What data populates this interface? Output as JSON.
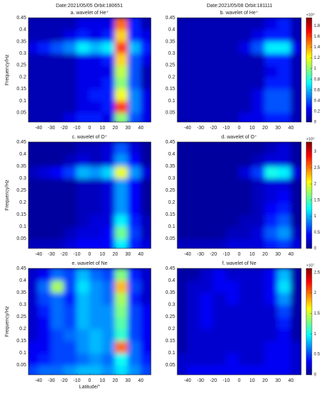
{
  "header": {
    "left": "Date:2021/05/05  Orbit:180651",
    "right": "Date:2021/05/08  Orbit:181111"
  },
  "chart_data": [
    {
      "type": "heatmap",
      "title": "a.  wavelet of He⁺",
      "ylabel": "Frequency/Hz",
      "colormap": "jet",
      "x": [
        -45,
        -35,
        -25,
        -15,
        -5,
        5,
        15,
        25,
        35,
        45
      ],
      "y": [
        0.025,
        0.075,
        0.125,
        0.175,
        0.225,
        0.275,
        0.325,
        0.375,
        0.425
      ],
      "z": [
        [
          0.1,
          0.1,
          0.1,
          0.2,
          0.3,
          0.3,
          0.2,
          1.0,
          0.4,
          0.2
        ],
        [
          0.1,
          0.1,
          0.1,
          0.1,
          0.2,
          0.2,
          0.3,
          1.6,
          0.5,
          0.2
        ],
        [
          0.1,
          0.1,
          0.1,
          0.1,
          0.2,
          0.3,
          0.3,
          1.2,
          0.5,
          0.2
        ],
        [
          0.1,
          0.1,
          0.1,
          0.1,
          0.2,
          0.2,
          0.3,
          1.0,
          0.4,
          0.1
        ],
        [
          0.1,
          0.1,
          0.1,
          0.1,
          0.2,
          0.2,
          0.2,
          1.1,
          0.4,
          0.1
        ],
        [
          0.1,
          0.1,
          0.1,
          0.1,
          0.2,
          0.2,
          0.3,
          1.3,
          0.4,
          0.2
        ],
        [
          0.2,
          0.3,
          0.4,
          0.5,
          0.7,
          0.6,
          0.7,
          1.6,
          0.6,
          0.3
        ],
        [
          0.1,
          0.1,
          0.1,
          0.2,
          0.3,
          0.2,
          0.3,
          1.3,
          0.3,
          0.2
        ],
        [
          0.1,
          0.1,
          0.1,
          0.1,
          0.2,
          0.2,
          0.2,
          1.5,
          0.3,
          0.1
        ]
      ],
      "xlim": [
        -48,
        48
      ],
      "ylim": [
        0.01,
        0.45
      ],
      "xticks": [
        -40,
        -30,
        -20,
        -10,
        0,
        10,
        20,
        30,
        40
      ],
      "yticks": [
        0.05,
        0.1,
        0.15,
        0.2,
        0.25,
        0.3,
        0.35,
        0.4,
        0.45
      ]
    },
    {
      "type": "heatmap",
      "title": "b.  wavelet of He⁺",
      "colormap": "jet",
      "x": [
        -45,
        -35,
        -25,
        -15,
        -5,
        5,
        15,
        25,
        35,
        45
      ],
      "y": [
        0.025,
        0.075,
        0.125,
        0.175,
        0.225,
        0.275,
        0.325,
        0.375,
        0.425
      ],
      "z": [
        [
          0.1,
          0.1,
          0.1,
          0.1,
          0.1,
          0.2,
          0.2,
          0.3,
          0.3,
          0.1
        ],
        [
          0.1,
          0.1,
          0.1,
          0.1,
          0.1,
          0.1,
          0.2,
          0.4,
          0.4,
          0.1
        ],
        [
          0.1,
          0.1,
          0.1,
          0.1,
          0.1,
          0.1,
          0.2,
          0.4,
          0.4,
          0.1
        ],
        [
          0.1,
          0.1,
          0.1,
          0.1,
          0.1,
          0.1,
          0.1,
          0.3,
          0.3,
          0.1
        ],
        [
          0.1,
          0.1,
          0.1,
          0.1,
          0.1,
          0.1,
          0.1,
          0.2,
          0.3,
          0.1
        ],
        [
          0.1,
          0.1,
          0.1,
          0.1,
          0.1,
          0.1,
          0.1,
          0.3,
          0.3,
          0.1
        ],
        [
          0.1,
          0.1,
          0.1,
          0.1,
          0.1,
          0.2,
          0.4,
          0.7,
          0.7,
          0.2
        ],
        [
          0.1,
          0.1,
          0.1,
          0.1,
          0.1,
          0.1,
          0.2,
          0.3,
          0.3,
          0.1
        ],
        [
          0.1,
          0.1,
          0.1,
          0.1,
          0.1,
          0.1,
          0.1,
          0.2,
          0.3,
          0.1
        ]
      ],
      "xlim": [
        -48,
        48
      ],
      "ylim": [
        0.01,
        0.45
      ],
      "xticks": [
        -40,
        -30,
        -20,
        -10,
        0,
        10,
        20,
        30,
        40
      ],
      "yticks": [
        0.05,
        0.1,
        0.15,
        0.2,
        0.25,
        0.3,
        0.35,
        0.4,
        0.45
      ],
      "colorbar": {
        "lim": [
          0,
          1.95
        ],
        "ticks": [
          0,
          0.2,
          0.4,
          0.6,
          0.8,
          1,
          1.2,
          1.4,
          1.6,
          1.8
        ],
        "exponent": "×10⁹"
      }
    },
    {
      "type": "heatmap",
      "title": "c.  wavelet of O⁺",
      "ylabel": "Frequency/Hz",
      "colormap": "jet",
      "x": [
        -45,
        -35,
        -25,
        -15,
        -5,
        5,
        15,
        25,
        35,
        45
      ],
      "y": [
        0.025,
        0.075,
        0.125,
        0.175,
        0.225,
        0.275,
        0.325,
        0.375,
        0.425
      ],
      "z": [
        [
          0.2,
          0.2,
          0.2,
          0.3,
          0.4,
          0.4,
          0.4,
          1.2,
          0.5,
          0.3
        ],
        [
          0.1,
          0.1,
          0.1,
          0.2,
          0.3,
          0.3,
          0.4,
          1.6,
          0.6,
          0.2
        ],
        [
          0.1,
          0.1,
          0.1,
          0.1,
          0.2,
          0.3,
          0.3,
          1.2,
          0.5,
          0.2
        ],
        [
          0.1,
          0.1,
          0.1,
          0.1,
          0.2,
          0.2,
          0.3,
          0.9,
          0.4,
          0.1
        ],
        [
          0.1,
          0.1,
          0.1,
          0.1,
          0.2,
          0.2,
          0.3,
          0.9,
          0.4,
          0.1
        ],
        [
          0.1,
          0.1,
          0.1,
          0.1,
          0.2,
          0.2,
          0.3,
          0.9,
          0.4,
          0.1
        ],
        [
          0.2,
          0.3,
          0.4,
          0.6,
          1.0,
          0.9,
          1.1,
          2.0,
          0.9,
          0.3
        ],
        [
          0.1,
          0.1,
          0.1,
          0.2,
          0.3,
          0.2,
          0.3,
          0.9,
          0.4,
          0.1
        ],
        [
          0.1,
          0.1,
          0.1,
          0.1,
          0.2,
          0.2,
          0.3,
          0.7,
          0.3,
          0.1
        ]
      ],
      "xlim": [
        -48,
        48
      ],
      "ylim": [
        0.01,
        0.45
      ],
      "xticks": [
        -40,
        -30,
        -20,
        -10,
        0,
        10,
        20,
        30,
        40
      ],
      "yticks": [
        0.05,
        0.1,
        0.15,
        0.2,
        0.25,
        0.3,
        0.35,
        0.4,
        0.45
      ]
    },
    {
      "type": "heatmap",
      "title": "d.  wavelet of O⁺",
      "colormap": "jet",
      "x": [
        -45,
        -35,
        -25,
        -15,
        -5,
        5,
        15,
        25,
        35,
        45
      ],
      "y": [
        0.025,
        0.075,
        0.125,
        0.175,
        0.225,
        0.275,
        0.325,
        0.375,
        0.425
      ],
      "z": [
        [
          0.2,
          0.2,
          0.2,
          0.2,
          0.3,
          0.3,
          0.3,
          0.5,
          0.6,
          0.3
        ],
        [
          0.1,
          0.1,
          0.1,
          0.1,
          0.2,
          0.2,
          0.3,
          0.7,
          0.9,
          0.2
        ],
        [
          0.1,
          0.1,
          0.1,
          0.1,
          0.1,
          0.2,
          0.2,
          0.5,
          0.7,
          0.1
        ],
        [
          0.1,
          0.1,
          0.1,
          0.1,
          0.1,
          0.1,
          0.2,
          0.4,
          0.5,
          0.1
        ],
        [
          0.1,
          0.1,
          0.1,
          0.1,
          0.1,
          0.1,
          0.2,
          0.3,
          0.4,
          0.1
        ],
        [
          0.1,
          0.1,
          0.1,
          0.1,
          0.1,
          0.1,
          0.2,
          0.3,
          0.3,
          0.1
        ],
        [
          0.1,
          0.1,
          0.1,
          0.1,
          0.1,
          0.3,
          0.6,
          1.3,
          1.2,
          0.3
        ],
        [
          0.1,
          0.1,
          0.1,
          0.1,
          0.1,
          0.1,
          0.2,
          0.3,
          0.3,
          0.1
        ],
        [
          0.1,
          0.1,
          0.1,
          0.1,
          0.1,
          0.1,
          0.1,
          0.2,
          0.3,
          0.1
        ]
      ],
      "xlim": [
        -48,
        48
      ],
      "ylim": [
        0.01,
        0.45
      ],
      "xticks": [
        -40,
        -30,
        -20,
        -10,
        0,
        10,
        20,
        30,
        40
      ],
      "yticks": [
        0.05,
        0.1,
        0.15,
        0.2,
        0.25,
        0.3,
        0.35,
        0.4,
        0.45
      ],
      "colorbar": {
        "lim": [
          0,
          3.3
        ],
        "ticks": [
          0,
          0.5,
          1,
          1.5,
          2,
          2.5,
          3
        ],
        "exponent": "×10⁹"
      }
    },
    {
      "type": "heatmap",
      "title": "e.  wavelet of Ne",
      "ylabel": "Frequency/Hz",
      "xlabel": "Latitude/°",
      "colormap": "jet",
      "x": [
        -45,
        -35,
        -25,
        -15,
        -5,
        5,
        15,
        25,
        35,
        45
      ],
      "y": [
        0.025,
        0.075,
        0.125,
        0.175,
        0.225,
        0.275,
        0.325,
        0.375,
        0.425
      ],
      "z": [
        [
          0.5,
          0.6,
          0.6,
          0.7,
          0.8,
          0.8,
          0.7,
          0.9,
          0.7,
          0.5
        ],
        [
          0.3,
          0.4,
          0.5,
          0.5,
          0.6,
          0.7,
          0.6,
          1.0,
          0.6,
          0.4
        ],
        [
          0.3,
          0.3,
          0.5,
          0.5,
          0.7,
          0.8,
          0.7,
          2.0,
          0.6,
          0.3
        ],
        [
          0.2,
          0.3,
          0.5,
          0.6,
          0.7,
          0.8,
          0.7,
          1.1,
          0.5,
          0.3
        ],
        [
          0.2,
          0.3,
          0.6,
          0.5,
          0.8,
          0.7,
          0.7,
          1.2,
          0.5,
          0.3
        ],
        [
          0.2,
          0.4,
          0.6,
          0.5,
          0.8,
          0.7,
          0.7,
          1.3,
          0.5,
          0.3
        ],
        [
          0.2,
          0.5,
          0.6,
          0.4,
          0.8,
          0.7,
          0.6,
          1.4,
          0.4,
          0.2
        ],
        [
          0.2,
          0.6,
          1.4,
          0.5,
          0.9,
          0.7,
          0.6,
          1.8,
          0.5,
          0.2
        ],
        [
          0.2,
          0.3,
          0.6,
          0.5,
          0.8,
          0.6,
          0.5,
          1.3,
          0.4,
          0.2
        ]
      ],
      "xlim": [
        -48,
        48
      ],
      "ylim": [
        0.01,
        0.45
      ],
      "xticks": [
        -40,
        -30,
        -20,
        -10,
        0,
        10,
        20,
        30,
        40
      ],
      "yticks": [
        0.05,
        0.1,
        0.15,
        0.2,
        0.25,
        0.3,
        0.35,
        0.4,
        0.45
      ]
    },
    {
      "type": "heatmap",
      "title": "f.  wavelet of Ne",
      "colormap": "jet",
      "x": [
        -45,
        -35,
        -25,
        -15,
        -5,
        5,
        15,
        25,
        35,
        45
      ],
      "y": [
        0.025,
        0.075,
        0.125,
        0.175,
        0.225,
        0.275,
        0.325,
        0.375,
        0.425
      ],
      "z": [
        [
          0.2,
          0.3,
          0.3,
          0.3,
          0.3,
          0.3,
          0.3,
          0.3,
          0.3,
          0.2
        ],
        [
          0.2,
          0.2,
          0.2,
          0.2,
          0.3,
          0.2,
          0.2,
          0.3,
          0.3,
          0.2
        ],
        [
          0.1,
          0.2,
          0.2,
          0.2,
          0.2,
          0.2,
          0.2,
          0.3,
          0.3,
          0.2
        ],
        [
          0.1,
          0.2,
          0.2,
          0.2,
          0.2,
          0.2,
          0.2,
          0.2,
          0.3,
          0.1
        ],
        [
          0.1,
          0.2,
          0.3,
          0.2,
          0.2,
          0.2,
          0.2,
          0.2,
          0.4,
          0.1
        ],
        [
          0.1,
          0.2,
          0.3,
          0.2,
          0.2,
          0.2,
          0.2,
          0.2,
          0.5,
          0.1
        ],
        [
          0.1,
          0.2,
          0.3,
          0.2,
          0.3,
          0.2,
          0.2,
          0.3,
          0.7,
          0.1
        ],
        [
          0.1,
          0.2,
          0.2,
          0.3,
          0.3,
          0.2,
          0.2,
          0.3,
          0.9,
          0.1
        ],
        [
          0.1,
          0.1,
          0.2,
          0.3,
          0.2,
          0.2,
          0.2,
          0.3,
          0.8,
          0.1
        ]
      ],
      "xlim": [
        -48,
        48
      ],
      "ylim": [
        0.01,
        0.45
      ],
      "xticks": [
        -40,
        -30,
        -20,
        -10,
        0,
        10,
        20,
        30,
        40
      ],
      "yticks": [
        0.05,
        0.1,
        0.15,
        0.2,
        0.25,
        0.3,
        0.35,
        0.4,
        0.45
      ],
      "colorbar": {
        "lim": [
          0,
          2.6
        ],
        "ticks": [
          0,
          0.5,
          1,
          1.5,
          2,
          2.5
        ],
        "exponent": "×10⁷"
      }
    }
  ]
}
